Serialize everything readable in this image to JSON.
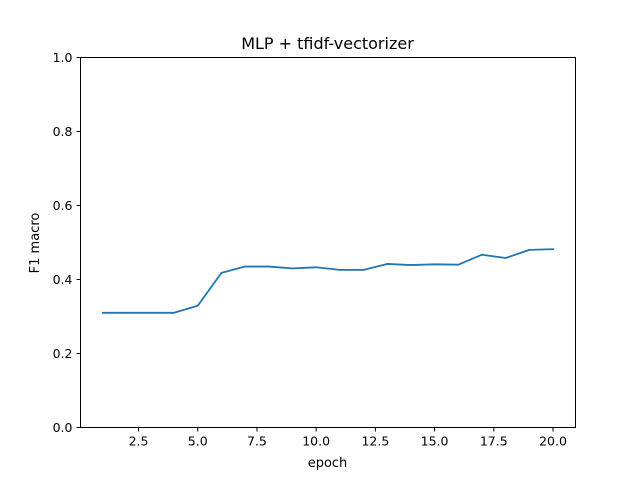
{
  "chart_data": {
    "type": "line",
    "title": "MLP + tfidf-vectorizer",
    "xlabel": "epoch",
    "ylabel": "F1 macro",
    "xlim": [
      0.05,
      20.95
    ],
    "ylim": [
      0.0,
      1.0
    ],
    "xticks": [
      2.5,
      5.0,
      7.5,
      10.0,
      12.5,
      15.0,
      17.5,
      20.0
    ],
    "xtick_labels": [
      "2.5",
      "5.0",
      "7.5",
      "10.0",
      "12.5",
      "15.0",
      "17.5",
      "20.0"
    ],
    "yticks": [
      0.0,
      0.2,
      0.4,
      0.6,
      0.8,
      1.0
    ],
    "ytick_labels": [
      "0.0",
      "0.2",
      "0.4",
      "0.6",
      "0.8",
      "1.0"
    ],
    "grid": false,
    "series": [
      {
        "color": "#1f77b4",
        "x": [
          1,
          2,
          3,
          4,
          5,
          6,
          7,
          8,
          9,
          10,
          11,
          12,
          13,
          14,
          15,
          16,
          17,
          18,
          19,
          20
        ],
        "y": [
          0.31,
          0.31,
          0.31,
          0.31,
          0.329,
          0.418,
          0.435,
          0.435,
          0.43,
          0.433,
          0.426,
          0.426,
          0.442,
          0.439,
          0.441,
          0.44,
          0.467,
          0.458,
          0.48,
          0.482
        ]
      }
    ]
  }
}
